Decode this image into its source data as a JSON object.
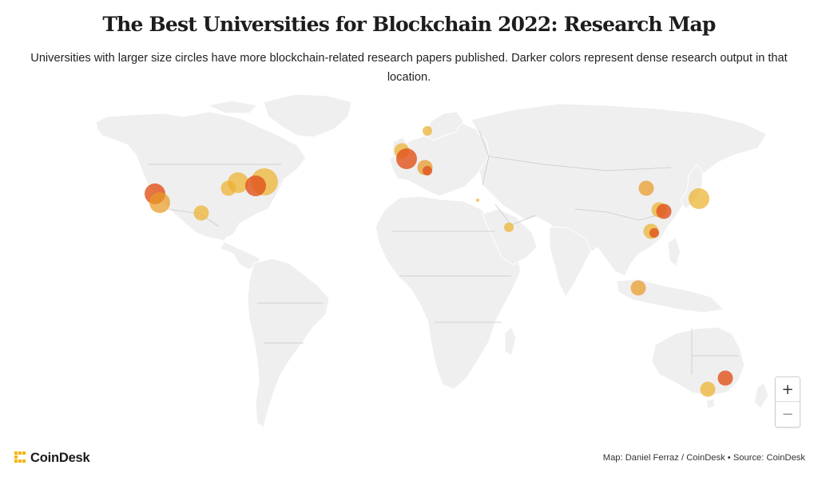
{
  "header": {
    "title": "The Best Universities for Blockchain 2022: Research Map",
    "subtitle": "Universities with larger size circles have more blockchain-related research papers published. Darker colors represent dense research output in that location."
  },
  "map": {
    "zoom_in_label": "+",
    "zoom_out_label": "−",
    "land_color": "#efefef",
    "border_color": "#c9c9c9",
    "marker_colors": {
      "low": "#ecb22e",
      "mid": "#e79a24",
      "high": "#e0561f"
    },
    "markers": [
      {
        "region": "US West Coast",
        "size": "large",
        "intensity": "high"
      },
      {
        "region": "US West Coast",
        "size": "large",
        "intensity": "mid"
      },
      {
        "region": "US Southwest",
        "size": "medium",
        "intensity": "low"
      },
      {
        "region": "US Midwest",
        "size": "medium",
        "intensity": "low"
      },
      {
        "region": "US Midwest",
        "size": "large",
        "intensity": "low"
      },
      {
        "region": "US Northeast",
        "size": "xlarge",
        "intensity": "low"
      },
      {
        "region": "US Northeast",
        "size": "large",
        "intensity": "high"
      },
      {
        "region": "Scandinavia",
        "size": "small",
        "intensity": "low"
      },
      {
        "region": "United Kingdom",
        "size": "medium",
        "intensity": "low"
      },
      {
        "region": "United Kingdom",
        "size": "large",
        "intensity": "high"
      },
      {
        "region": "Switzerland",
        "size": "medium",
        "intensity": "mid"
      },
      {
        "region": "Switzerland",
        "size": "small",
        "intensity": "high"
      },
      {
        "region": "Cyprus",
        "size": "tiny",
        "intensity": "low"
      },
      {
        "region": "United Arab Emirates",
        "size": "small",
        "intensity": "low"
      },
      {
        "region": "Beijing",
        "size": "medium",
        "intensity": "mid"
      },
      {
        "region": "Japan",
        "size": "large",
        "intensity": "low"
      },
      {
        "region": "Shanghai",
        "size": "medium",
        "intensity": "low"
      },
      {
        "region": "Shanghai",
        "size": "medium",
        "intensity": "high"
      },
      {
        "region": "Hong Kong",
        "size": "medium",
        "intensity": "low"
      },
      {
        "region": "Hong Kong",
        "size": "small",
        "intensity": "high"
      },
      {
        "region": "Singapore",
        "size": "medium",
        "intensity": "mid"
      },
      {
        "region": "Melbourne",
        "size": "medium",
        "intensity": "low"
      },
      {
        "region": "Sydney",
        "size": "medium",
        "intensity": "high"
      }
    ]
  },
  "footer": {
    "brand": "CoinDesk",
    "credit": "Map: Daniel Ferraz / CoinDesk • Source: CoinDesk",
    "brand_color": "#f5b400"
  }
}
